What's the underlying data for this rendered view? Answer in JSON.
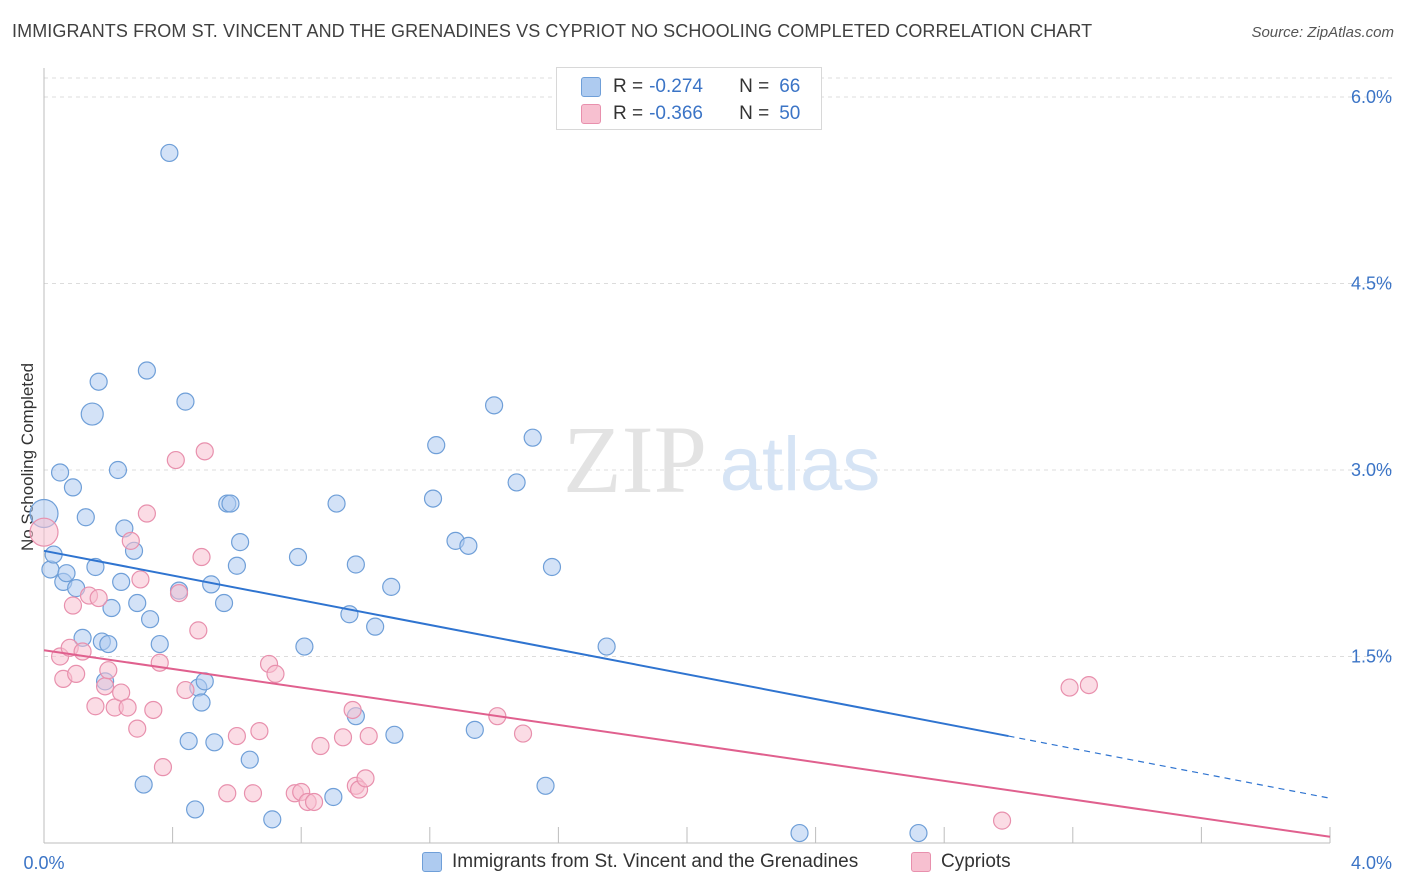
{
  "title": "IMMIGRANTS FROM ST. VINCENT AND THE GRENADINES VS CYPRIOT NO SCHOOLING COMPLETED CORRELATION CHART",
  "source": "Source: ZipAtlas.com",
  "watermark": {
    "zip": "ZIP",
    "atlas": "atlas"
  },
  "legend_top": {
    "rows": [
      {
        "r_label": "R =",
        "r_value": "-0.274",
        "n_label": "N =",
        "n_value": "66"
      },
      {
        "r_label": "R =",
        "r_value": "-0.366",
        "n_label": "N =",
        "n_value": "50"
      }
    ]
  },
  "chart_data": {
    "type": "scatter",
    "ylabel": "No Schooling Completed",
    "x_ticks": [
      "0.0%",
      "4.0%"
    ],
    "y_ticks": [
      "6.0%",
      "4.5%",
      "3.0%",
      "1.5%"
    ],
    "xlim": [
      0,
      4.0
    ],
    "ylim": [
      0,
      6.0
    ],
    "grid": true,
    "legend_position": "bottom",
    "colors": {
      "blue_fill": "#aecbf0",
      "blue_stroke": "#6f9fd8",
      "blue_line": "#2f74d0",
      "pink_fill": "#f7c0d0",
      "pink_stroke": "#e890ad",
      "pink_line": "#e0608e",
      "tick_label": "#3b74c6"
    },
    "series": [
      {
        "name": "Immigrants from St. Vincent and the Grenadines",
        "color": "blue",
        "points": [
          [
            0.0,
            2.65
          ],
          [
            0.02,
            2.2
          ],
          [
            0.03,
            2.32
          ],
          [
            0.05,
            2.98
          ],
          [
            0.06,
            2.1
          ],
          [
            0.07,
            2.17
          ],
          [
            0.09,
            2.86
          ],
          [
            0.1,
            2.05
          ],
          [
            0.12,
            1.65
          ],
          [
            0.13,
            2.62
          ],
          [
            0.15,
            3.45
          ],
          [
            0.16,
            2.22
          ],
          [
            0.17,
            3.71
          ],
          [
            0.18,
            1.62
          ],
          [
            0.19,
            1.3
          ],
          [
            0.2,
            1.6
          ],
          [
            0.21,
            1.89
          ],
          [
            0.23,
            3.0
          ],
          [
            0.24,
            2.1
          ],
          [
            0.25,
            2.53
          ],
          [
            0.28,
            2.35
          ],
          [
            0.29,
            1.93
          ],
          [
            0.31,
            0.47
          ],
          [
            0.32,
            3.8
          ],
          [
            0.33,
            1.8
          ],
          [
            0.36,
            1.6
          ],
          [
            0.39,
            5.55
          ],
          [
            0.42,
            2.03
          ],
          [
            0.44,
            3.55
          ],
          [
            0.45,
            0.82
          ],
          [
            0.47,
            0.27
          ],
          [
            0.48,
            1.25
          ],
          [
            0.49,
            1.13
          ],
          [
            0.5,
            1.3
          ],
          [
            0.52,
            2.08
          ],
          [
            0.53,
            0.81
          ],
          [
            0.56,
            1.93
          ],
          [
            0.57,
            2.73
          ],
          [
            0.58,
            2.73
          ],
          [
            0.6,
            2.23
          ],
          [
            0.61,
            2.42
          ],
          [
            0.64,
            0.67
          ],
          [
            0.71,
            0.19
          ],
          [
            0.79,
            2.3
          ],
          [
            0.81,
            1.58
          ],
          [
            0.9,
            0.37
          ],
          [
            0.91,
            2.73
          ],
          [
            0.95,
            1.84
          ],
          [
            0.97,
            1.02
          ],
          [
            0.97,
            2.24
          ],
          [
            1.03,
            1.74
          ],
          [
            1.08,
            2.06
          ],
          [
            1.09,
            0.87
          ],
          [
            1.21,
            2.77
          ],
          [
            1.22,
            3.2
          ],
          [
            1.28,
            2.43
          ],
          [
            1.32,
            2.39
          ],
          [
            1.34,
            0.91
          ],
          [
            1.4,
            3.52
          ],
          [
            1.47,
            2.9
          ],
          [
            1.52,
            3.26
          ],
          [
            1.56,
            0.46
          ],
          [
            1.58,
            2.22
          ],
          [
            1.75,
            1.58
          ],
          [
            2.35,
            0.08
          ],
          [
            2.72,
            0.08
          ]
        ]
      },
      {
        "name": "Cypriots",
        "color": "pink",
        "points": [
          [
            0.0,
            2.5
          ],
          [
            0.05,
            1.5
          ],
          [
            0.06,
            1.32
          ],
          [
            0.08,
            1.57
          ],
          [
            0.09,
            1.91
          ],
          [
            0.1,
            1.36
          ],
          [
            0.12,
            1.54
          ],
          [
            0.14,
            1.99
          ],
          [
            0.16,
            1.1
          ],
          [
            0.17,
            1.97
          ],
          [
            0.19,
            1.26
          ],
          [
            0.2,
            1.39
          ],
          [
            0.22,
            1.09
          ],
          [
            0.24,
            1.21
          ],
          [
            0.26,
            1.09
          ],
          [
            0.27,
            2.43
          ],
          [
            0.29,
            0.92
          ],
          [
            0.3,
            2.12
          ],
          [
            0.32,
            2.65
          ],
          [
            0.34,
            1.07
          ],
          [
            0.36,
            1.45
          ],
          [
            0.37,
            0.61
          ],
          [
            0.41,
            3.08
          ],
          [
            0.42,
            2.01
          ],
          [
            0.44,
            1.23
          ],
          [
            0.48,
            1.71
          ],
          [
            0.49,
            2.3
          ],
          [
            0.5,
            3.15
          ],
          [
            0.57,
            0.4
          ],
          [
            0.6,
            0.86
          ],
          [
            0.65,
            0.4
          ],
          [
            0.67,
            0.9
          ],
          [
            0.7,
            1.44
          ],
          [
            0.72,
            1.36
          ],
          [
            0.78,
            0.4
          ],
          [
            0.8,
            0.41
          ],
          [
            0.82,
            0.33
          ],
          [
            0.84,
            0.33
          ],
          [
            0.86,
            0.78
          ],
          [
            0.93,
            0.85
          ],
          [
            0.96,
            1.07
          ],
          [
            0.97,
            0.46
          ],
          [
            0.98,
            0.43
          ],
          [
            1.0,
            0.52
          ],
          [
            1.01,
            0.86
          ],
          [
            1.41,
            1.02
          ],
          [
            1.49,
            0.88
          ],
          [
            2.98,
            0.18
          ],
          [
            3.19,
            1.25
          ],
          [
            3.25,
            1.27
          ]
        ]
      }
    ],
    "trendlines": [
      {
        "series": "Immigrants from St. Vincent and the Grenadines",
        "x0": 0.0,
        "y0": 2.35,
        "x1": 3.0,
        "y1": 0.86,
        "dashed_to_x": 4.0,
        "dashed_to_y": 0.36
      },
      {
        "series": "Cypriots",
        "x0": 0.0,
        "y0": 1.55,
        "x1": 4.0,
        "y1": 0.05
      }
    ]
  }
}
